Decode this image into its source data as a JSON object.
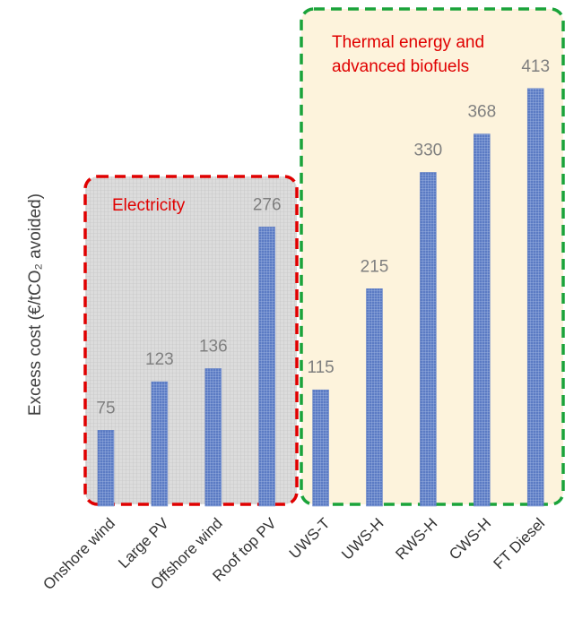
{
  "chart_data": {
    "type": "bar",
    "y_label": "Excess cost (€/tCO₂ avoided)",
    "categories": [
      "Onshore wind",
      "Large PV",
      "Offshore wind",
      "Roof top PV",
      "UWS-T",
      "UWS-H",
      "RWS-H",
      "CWS-H",
      "FT Diesel"
    ],
    "values": [
      75,
      123,
      136,
      276,
      115,
      215,
      330,
      368,
      413
    ],
    "color": "#5b7bc4",
    "ylim": [
      0,
      450
    ],
    "groups": [
      {
        "label": [
          "Electricity"
        ]
      },
      {
        "label": [
          "Thermal energy and",
          "advanced biofuels"
        ]
      }
    ]
  }
}
